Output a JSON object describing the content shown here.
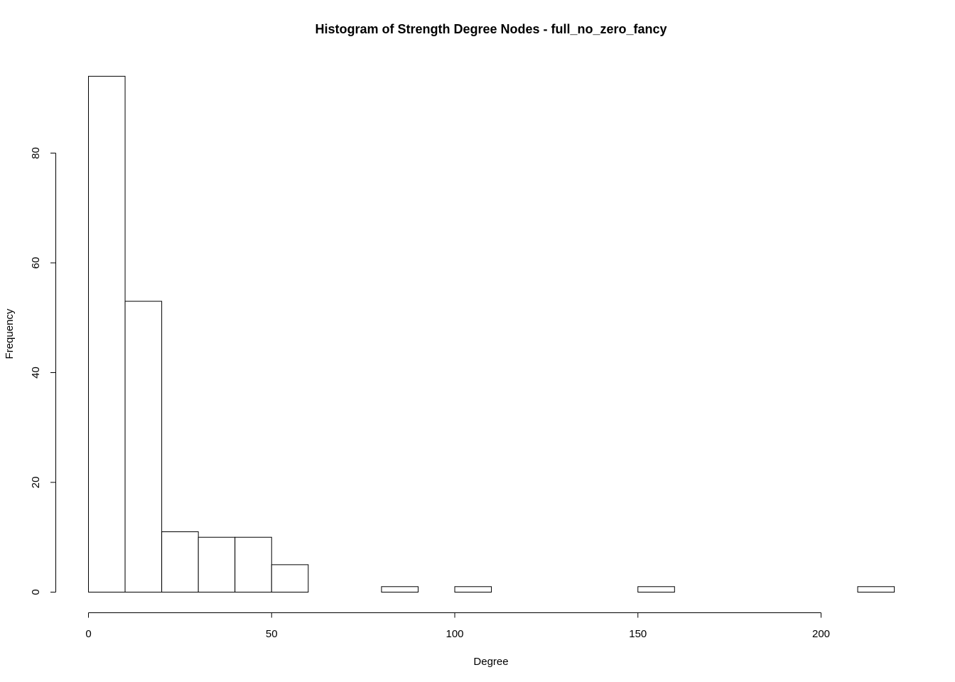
{
  "chart_data": {
    "type": "bar",
    "title": "Histogram of Strength Degree Nodes - full_no_zero_fancy",
    "xlabel": "Degree",
    "ylabel": "Frequency",
    "bin_edges": [
      0,
      10,
      20,
      30,
      40,
      50,
      60,
      70,
      80,
      90,
      100,
      110,
      120,
      130,
      140,
      150,
      160,
      170,
      180,
      190,
      200,
      210,
      220
    ],
    "values": [
      94,
      53,
      11,
      10,
      10,
      5,
      0,
      0,
      1,
      0,
      1,
      0,
      0,
      0,
      0,
      1,
      0,
      0,
      0,
      0,
      0,
      1
    ],
    "xlim": [
      0,
      220
    ],
    "ylim": [
      0,
      94
    ],
    "x_ticks": [
      0,
      50,
      100,
      150,
      200
    ],
    "x_tick_labels": [
      "0",
      "50",
      "100",
      "150",
      "200"
    ],
    "y_ticks": [
      0,
      20,
      40,
      60,
      80
    ],
    "y_tick_labels": [
      "0",
      "20",
      "40",
      "60",
      "80"
    ],
    "grid": false,
    "bar_fill": "#ffffff",
    "bar_stroke": "#000000"
  }
}
